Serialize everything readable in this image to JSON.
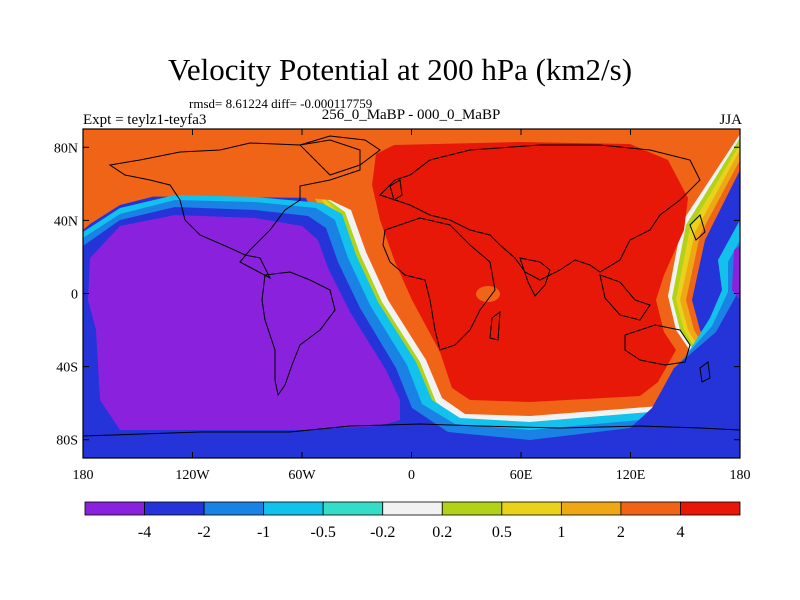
{
  "chart_data": {
    "type": "heatmap",
    "title": "Velocity Potential at 200 hPa (km2/s)",
    "stats": "rmsd= 8.61224 diff= -0.000117759",
    "left_string": "Expt = teylz1-teyfa3",
    "center_string": "256_0_MaBP - 000_0_MaBP",
    "right_string": "JJA",
    "x_axis": {
      "min": -180,
      "max": 180,
      "tick_values": [
        -180,
        -120,
        -60,
        0,
        60,
        120,
        180
      ],
      "tick_labels": [
        "180",
        "120W",
        "60W",
        "0",
        "60E",
        "120E",
        "180"
      ]
    },
    "y_axis": {
      "min": -90,
      "max": 90,
      "tick_values": [
        80,
        40,
        0,
        -40,
        -80
      ],
      "tick_labels": [
        "80N",
        "40N",
        "0",
        "40S",
        "80S"
      ]
    },
    "contour_levels": [
      -4,
      -2,
      -1,
      -0.5,
      -0.2,
      0.2,
      0.5,
      1,
      2,
      4
    ],
    "colorbar_labels": [
      "-4",
      "-2",
      "-1",
      "-0.5",
      "-0.2",
      "0.2",
      "0.5",
      "1",
      "2",
      "4"
    ],
    "colors": [
      "#8a22dd",
      "#2434d8",
      "#1a82e4",
      "#12c2ec",
      "#35dcc8",
      "#f2f2f2",
      "#b2d21a",
      "#ead21a",
      "#eea816",
      "#f06418",
      "#e81808"
    ],
    "regions": [
      {
        "level": "< -4",
        "color": "#8a22dd",
        "where": "Western Hemisphere Pacific and Americas, 180W to ~30W"
      },
      {
        "level": "> 4",
        "color": "#e81808",
        "where": "Eastern Hemisphere, Africa-Eurasia-Indian Ocean"
      }
    ]
  }
}
